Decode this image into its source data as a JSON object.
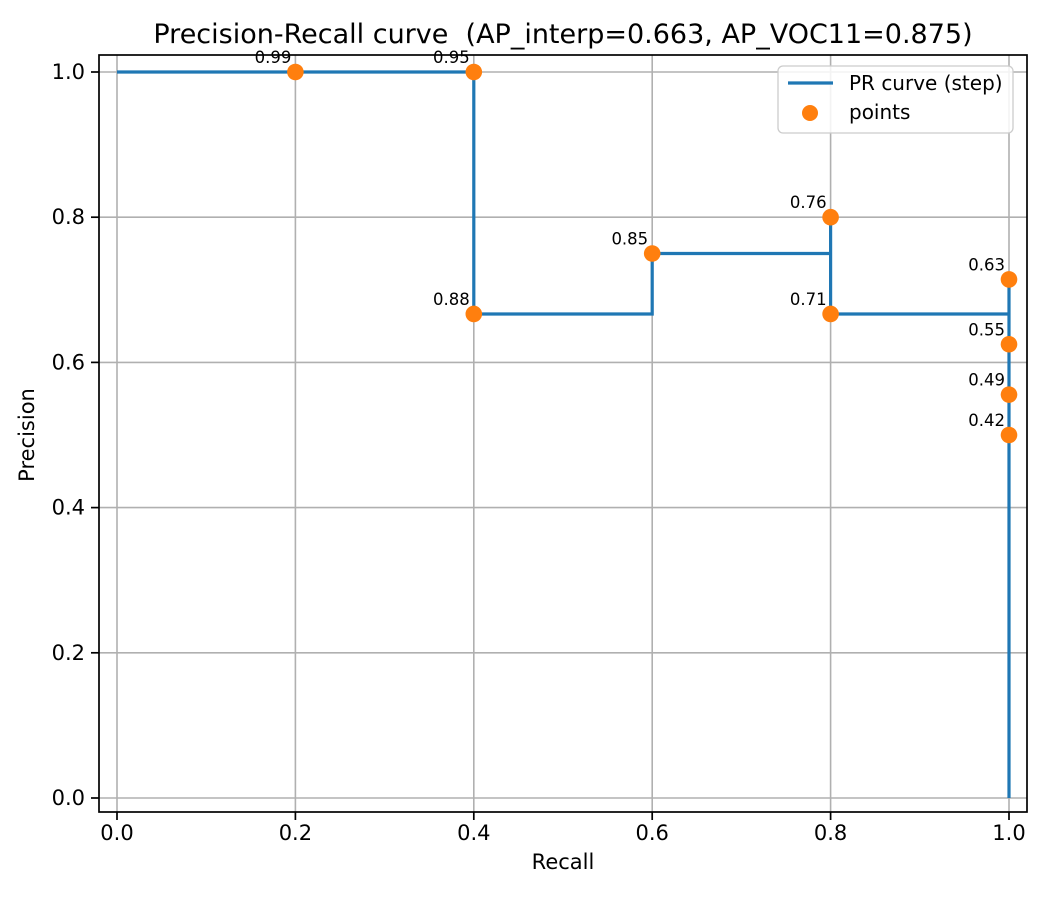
{
  "chart_data": {
    "type": "line",
    "title": "Precision-Recall curve  (AP_interp=0.663, AP_VOC11=0.875)",
    "xlabel": "Recall",
    "ylabel": "Precision",
    "ap_values": {
      "AP_interp": 0.663,
      "AP_VOC11": 0.875
    },
    "xlim": [
      -0.02,
      1.02
    ],
    "ylim": [
      -0.02,
      1.02
    ],
    "x_ticks": [
      0.0,
      0.2,
      0.4,
      0.6,
      0.8,
      1.0
    ],
    "x_tick_labels": [
      "0.0",
      "0.2",
      "0.4",
      "0.6",
      "0.8",
      "1.0"
    ],
    "y_ticks": [
      0.0,
      0.2,
      0.4,
      0.6,
      0.8,
      1.0
    ],
    "y_tick_labels": [
      "0.0",
      "0.2",
      "0.4",
      "0.6",
      "0.8",
      "1.0"
    ],
    "grid": true,
    "legend": {
      "position": "upper right",
      "entries": [
        {
          "label": "PR curve (step)",
          "type": "line",
          "color": "#1f77b4"
        },
        {
          "label": "points",
          "type": "marker",
          "color": "#ff7f0e"
        }
      ]
    },
    "colors": {
      "curve": "#1f77b4",
      "points": "#ff7f0e",
      "grid": "#b0b0b0",
      "spine": "#000000"
    },
    "series": [
      {
        "name": "PR curve (step)",
        "type": "step",
        "drawstyle": "steps-post",
        "color": "#1f77b4",
        "step_vertices": [
          [
            0.0,
            1.0
          ],
          [
            0.4,
            1.0
          ],
          [
            0.4,
            0.6667
          ],
          [
            0.6,
            0.6667
          ],
          [
            0.6,
            0.75
          ],
          [
            0.8,
            0.75
          ],
          [
            0.8,
            0.8
          ],
          [
            0.8,
            0.6667
          ],
          [
            1.0,
            0.6667
          ],
          [
            1.0,
            0.7143
          ],
          [
            1.0,
            0.0
          ]
        ]
      },
      {
        "name": "points",
        "type": "scatter",
        "color": "#ff7f0e",
        "points": [
          {
            "x": 0.2,
            "y": 1.0,
            "label": "0.99"
          },
          {
            "x": 0.4,
            "y": 1.0,
            "label": "0.95"
          },
          {
            "x": 0.4,
            "y": 0.6667,
            "label": "0.88"
          },
          {
            "x": 0.6,
            "y": 0.75,
            "label": "0.85"
          },
          {
            "x": 0.8,
            "y": 0.8,
            "label": "0.76"
          },
          {
            "x": 0.8,
            "y": 0.6667,
            "label": "0.71"
          },
          {
            "x": 1.0,
            "y": 0.7143,
            "label": "0.63"
          },
          {
            "x": 1.0,
            "y": 0.625,
            "label": "0.55"
          },
          {
            "x": 1.0,
            "y": 0.5556,
            "label": "0.49"
          },
          {
            "x": 1.0,
            "y": 0.5,
            "label": "0.42"
          }
        ]
      }
    ]
  }
}
